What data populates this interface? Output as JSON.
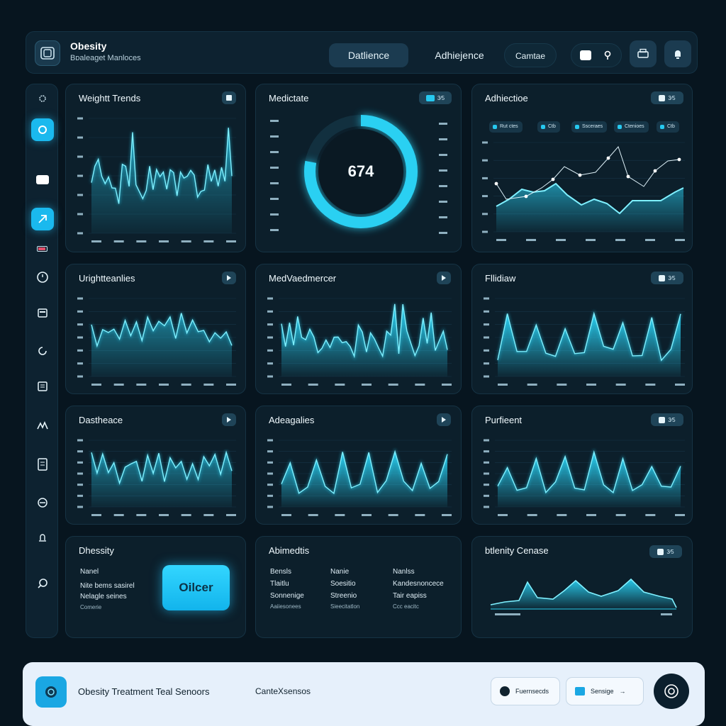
{
  "header": {
    "title": "Obesity",
    "subtitle": "Bᴅaleaget Manloces",
    "tabs": [
      {
        "label": "Datlience",
        "active": true
      },
      {
        "label": "Adhiejence",
        "active": false
      },
      {
        "label": "Camtae",
        "active": false
      }
    ]
  },
  "cards": [
    {
      "title": "Weightt Trends",
      "toggle": ""
    },
    {
      "title": "Medictate",
      "toggle": "3⁄5"
    },
    {
      "title": "Adhiectioe",
      "toggle": "3⁄5"
    },
    {
      "title": "Urightteanlies",
      "toggle": ""
    },
    {
      "title": "MedVaedmercer",
      "toggle": ""
    },
    {
      "title": "Fllidiaw",
      "toggle": "3⁄5"
    },
    {
      "title": "Dastheace",
      "toggle": ""
    },
    {
      "title": "Adeagalies",
      "toggle": ""
    },
    {
      "title": "Purfieent",
      "toggle": "3⁄5"
    }
  ],
  "gauge": {
    "value": "674",
    "fraction": 0.78
  },
  "adherence_legend": [
    "Rut ctes",
    "Ctb",
    "Ssceraes",
    "Ctenioes",
    "Ctb"
  ],
  "summary_obesity": {
    "title": "Dhessity",
    "lines": [
      "Nanel",
      "Nite bems sasirel",
      "Nelagle seines",
      "Comerie"
    ],
    "cta": "Oilcer"
  },
  "summary_abimedis": {
    "title": "Abimedtis",
    "columns": [
      [
        "Bensls",
        "Tlaitlu",
        "Sonnenige",
        "Aaiiesonees"
      ],
      [
        "Nanie",
        "Soesitio",
        "Streenio",
        "Sieecitatlon"
      ],
      [
        "Nanlss",
        "Kandesnoncece",
        "Tair eapiss",
        "Ccc eacitc"
      ]
    ]
  },
  "sensing": {
    "title": "btlenity Cenase",
    "toggle": "3⁄5"
  },
  "footer": {
    "title": "Obesity Treatment Teal Senoors",
    "subtitle": "CanteXsensos",
    "buttons": [
      "Fuernsecds",
      "Sensige"
    ],
    "arrow": "→"
  },
  "colors": {
    "accent": "#2ad0f2",
    "background": "#07151f",
    "card": "#0c1f2b",
    "footer": "#e6f0fb"
  }
}
